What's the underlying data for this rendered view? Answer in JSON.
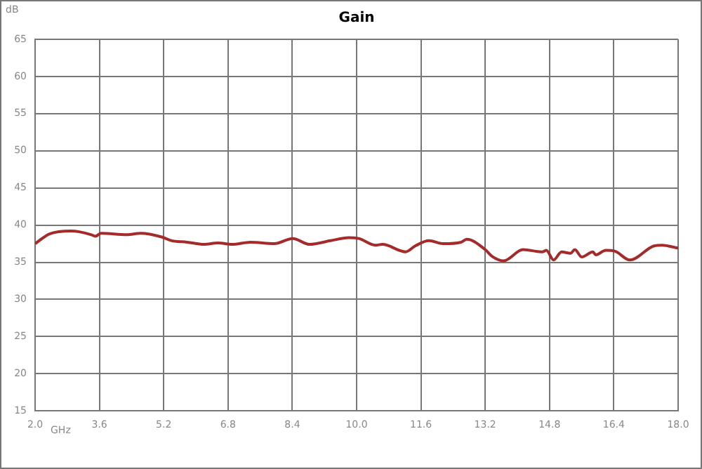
{
  "chart_data": {
    "type": "line",
    "title": "Gain",
    "xlabel": "GHz",
    "ylabel": "dB",
    "x": [
      2.0,
      2.23,
      2.35,
      2.9,
      3.1,
      3.4,
      3.5,
      3.64,
      4.28,
      4.63,
      5.15,
      5.4,
      5.78,
      6.2,
      6.55,
      6.9,
      7.36,
      7.95,
      8.41,
      8.83,
      9.35,
      9.8,
      10.05,
      10.47,
      10.64,
      11.22,
      11.46,
      11.8,
      12.15,
      12.6,
      12.74,
      13.2,
      13.37,
      13.66,
      14.14,
      14.62,
      14.72,
      14.9,
      15.1,
      15.32,
      15.43,
      15.6,
      15.88,
      15.95,
      16.2,
      16.42,
      16.8,
      17.4,
      17.6,
      18.0
    ],
    "series": [
      {
        "color": "#a52a2a",
        "values": [
          37.5,
          38.4,
          38.8,
          39.2,
          39.1,
          38.7,
          38.5,
          38.9,
          38.7,
          38.9,
          38.4,
          37.9,
          37.7,
          37.4,
          37.6,
          37.4,
          37.7,
          37.5,
          38.2,
          37.4,
          37.9,
          38.3,
          38.2,
          37.3,
          37.4,
          36.4,
          37.2,
          37.9,
          37.5,
          37.7,
          38.1,
          36.7,
          35.8,
          35.2,
          36.7,
          36.4,
          36.6,
          35.3,
          36.4,
          36.2,
          36.7,
          35.7,
          36.4,
          36.0,
          36.6,
          36.5,
          35.3,
          37.2,
          37.3,
          36.9
        ]
      }
    ],
    "xlim": [
      2.0,
      18.0
    ],
    "xticks": [
      {
        "value": 2.0,
        "label": "2.0"
      },
      3.6,
      5.2,
      6.8,
      8.4,
      {
        "value": 10.0,
        "label": "10.0"
      },
      11.6,
      13.2,
      14.8,
      16.4,
      {
        "value": 18.0,
        "label": "18.0"
      }
    ],
    "ylim": [
      15,
      65
    ],
    "yticks": [
      15,
      20,
      25,
      30,
      35,
      40,
      45,
      50,
      55,
      60,
      65
    ],
    "grid": true,
    "legend": false,
    "marker": "none",
    "line_style": "solid"
  }
}
